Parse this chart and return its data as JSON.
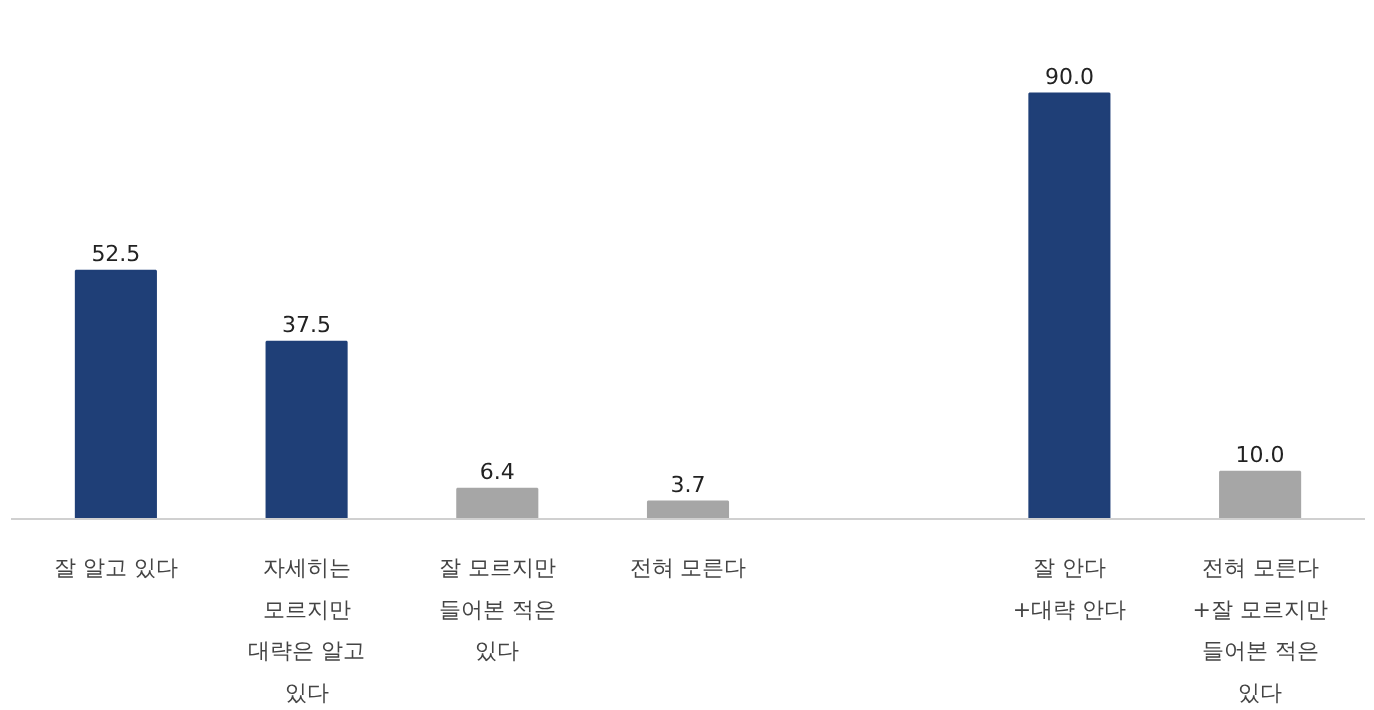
{
  "chart_data": {
    "type": "bar",
    "categories": [
      "잘 알고 있다",
      "자세히는\n모르지만\n대략은 알고\n있다",
      "잘 모르지만\n들어본 적은\n있다",
      "전혀 모른다",
      null,
      "잘 안다\n+대략 안다",
      "전혀 모른다\n+잘 모르지만\n들어본 적은\n있다"
    ],
    "values": [
      52.5,
      37.5,
      6.4,
      3.7,
      null,
      90.0,
      10.0
    ],
    "value_labels": [
      "52.5",
      "37.5",
      "6.4",
      "3.7",
      null,
      "90.0",
      "10.0"
    ],
    "colors": [
      "#1f3f77",
      "#1f3f77",
      "#a6a6a6",
      "#a6a6a6",
      null,
      "#1f3f77",
      "#a6a6a6"
    ],
    "grid": false
  }
}
